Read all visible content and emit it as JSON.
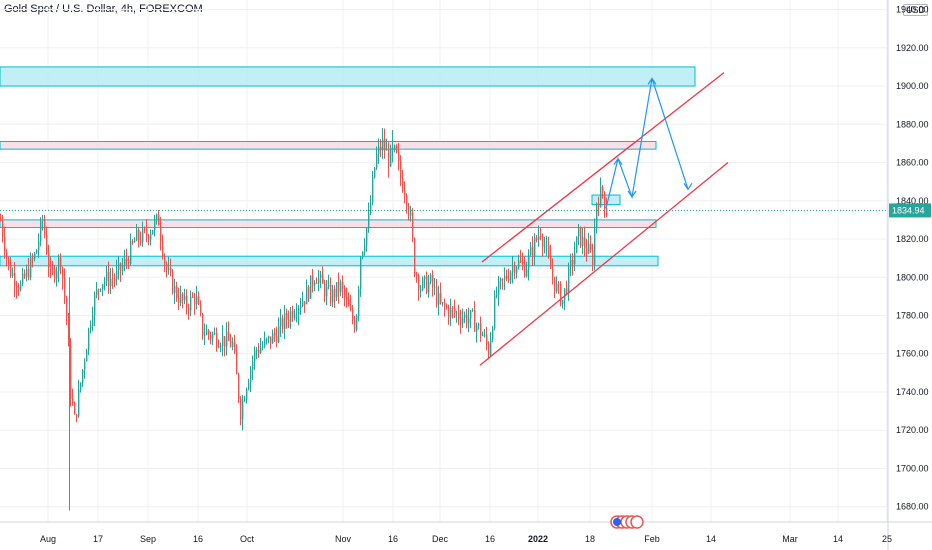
{
  "header": {
    "title": "Gold Spot / U.S. Dollar, 4h, FOREXCOM",
    "currency": "USD"
  },
  "price_label": {
    "text": "1834.94",
    "value": 1834.94,
    "color": "#26a69a"
  },
  "colors": {
    "up": "#26a69a",
    "down": "#ef5350",
    "zone_cyan_fill": "#b2ebf2",
    "zone_cyan_stroke": "#00bcd4",
    "zone_pink_fill": "#f8d7e0",
    "zone_pink_stroke": "#00bcd4",
    "channel": "#f23645",
    "arrow": "#2196f3",
    "grid": "#eef0f3"
  },
  "chart_data": {
    "type": "candlestick",
    "symbol": "Gold Spot / U.S. Dollar",
    "interval": "4h",
    "exchange": "FOREXCOM",
    "ylim": [
      1672,
      1945
    ],
    "y_ticks": [
      1680,
      1700,
      1720,
      1740,
      1760,
      1780,
      1800,
      1820,
      1840,
      1860,
      1880,
      1900,
      1920,
      1940
    ],
    "y_tick_labels": [
      "1680.00",
      "1700.00",
      "1720.00",
      "1740.00",
      "1760.00",
      "1780.00",
      "1800.00",
      "1820.00",
      "1840.00",
      "1860.00",
      "1880.00",
      "1900.00",
      "1920.00",
      "1940.00"
    ],
    "x_labels": [
      "Aug",
      "17",
      "Sep",
      "16",
      "Oct",
      "Nov",
      "16",
      "Dec",
      "16",
      "2022",
      "18",
      "Feb",
      "14",
      "Mar",
      "14",
      "25"
    ],
    "x_label_bold": [
      false,
      false,
      false,
      false,
      false,
      false,
      false,
      false,
      false,
      true,
      false,
      false,
      false,
      false,
      false,
      false
    ],
    "last_price": 1834.94,
    "path_points": [
      [
        0,
        1830
      ],
      [
        8,
        1805
      ],
      [
        20,
        1795
      ],
      [
        35,
        1812
      ],
      [
        42,
        1830
      ],
      [
        50,
        1800
      ],
      [
        60,
        1810
      ],
      [
        66,
        1780
      ],
      [
        70,
        1740
      ],
      [
        74,
        1725
      ],
      [
        78,
        1738
      ],
      [
        85,
        1762
      ],
      [
        92,
        1785
      ],
      [
        100,
        1798
      ],
      [
        115,
        1800
      ],
      [
        125,
        1808
      ],
      [
        135,
        1820
      ],
      [
        145,
        1822
      ],
      [
        158,
        1830
      ],
      [
        165,
        1805
      ],
      [
        175,
        1792
      ],
      [
        185,
        1785
      ],
      [
        195,
        1790
      ],
      [
        202,
        1772
      ],
      [
        210,
        1770
      ],
      [
        220,
        1768
      ],
      [
        232,
        1765
      ],
      [
        240,
        1730
      ],
      [
        246,
        1745
      ],
      [
        255,
        1762
      ],
      [
        265,
        1765
      ],
      [
        275,
        1770
      ],
      [
        285,
        1778
      ],
      [
        295,
        1785
      ],
      [
        305,
        1790
      ],
      [
        315,
        1802
      ],
      [
        322,
        1795
      ],
      [
        330,
        1790
      ],
      [
        340,
        1795
      ],
      [
        350,
        1780
      ],
      [
        355,
        1775
      ],
      [
        360,
        1812
      ],
      [
        368,
        1830
      ],
      [
        375,
        1862
      ],
      [
        382,
        1870
      ],
      [
        388,
        1862
      ],
      [
        395,
        1865
      ],
      [
        400,
        1852
      ],
      [
        405,
        1845
      ],
      [
        410,
        1830
      ],
      [
        414,
        1805
      ],
      [
        420,
        1795
      ],
      [
        430,
        1797
      ],
      [
        440,
        1785
      ],
      [
        450,
        1782
      ],
      [
        460,
        1780
      ],
      [
        472,
        1778
      ],
      [
        482,
        1770
      ],
      [
        488,
        1762
      ],
      [
        495,
        1790
      ],
      [
        505,
        1800
      ],
      [
        515,
        1808
      ],
      [
        525,
        1805
      ],
      [
        532,
        1815
      ],
      [
        540,
        1825
      ],
      [
        548,
        1808
      ],
      [
        555,
        1795
      ],
      [
        562,
        1788
      ],
      [
        570,
        1805
      ],
      [
        578,
        1822
      ],
      [
        586,
        1815
      ],
      [
        592,
        1810
      ],
      [
        596,
        1840
      ],
      [
        602,
        1845
      ],
      [
        606,
        1835
      ]
    ],
    "extremes": {
      "low_wick": 1678,
      "high_wick": 1877
    },
    "zones": [
      {
        "kind": "cyan",
        "y_top": 1910,
        "y_bottom": 1900,
        "x_end": 695
      },
      {
        "kind": "pink",
        "y_top": 1871,
        "y_bottom": 1867,
        "x_end": 656
      },
      {
        "kind": "cyan",
        "y_top": 1843,
        "y_bottom": 1838,
        "x_end": 620
      },
      {
        "kind": "pink",
        "y_top": 1830,
        "y_bottom": 1826,
        "x_end": 656
      },
      {
        "kind": "cyan",
        "y_top": 1811,
        "y_bottom": 1806,
        "x_end": 658
      }
    ],
    "channel_lines": [
      {
        "x1": 480,
        "y1": 1754,
        "x2": 728,
        "y2": 1860
      },
      {
        "x1": 482,
        "y1": 1808,
        "x2": 724,
        "y2": 1907
      }
    ],
    "projection_arrow": [
      [
        606,
        1836
      ],
      [
        618,
        1862
      ],
      [
        632,
        1842
      ],
      [
        652,
        1904
      ],
      [
        688,
        1846
      ]
    ]
  }
}
